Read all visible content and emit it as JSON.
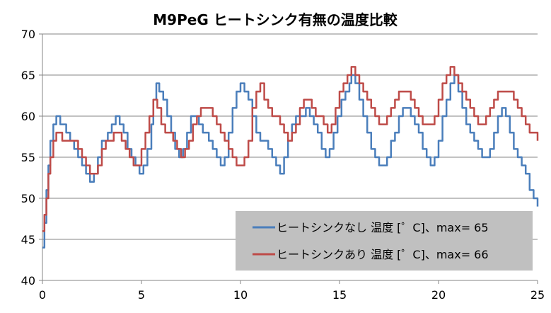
{
  "chart_data": {
    "type": "line",
    "title": "M9PeG ヒートシンク有無の温度比較",
    "xlabel": "",
    "ylabel": "",
    "xlim": [
      0,
      25
    ],
    "ylim": [
      40,
      70
    ],
    "x_ticks": [
      0,
      5,
      10,
      15,
      20,
      25
    ],
    "y_ticks": [
      40,
      45,
      50,
      55,
      60,
      65,
      70
    ],
    "grid": "horizontal",
    "legend_placement": "bottom-right (inside plot, grey box)",
    "legend_bg": "#c0c0c0",
    "series": [
      {
        "name": "ヒートシンクなし 温度 [゜C]、max= 65",
        "color": "#4a7ebb",
        "x": [
          0,
          0.1,
          0.2,
          0.3,
          0.4,
          0.55,
          0.7,
          0.9,
          1.2,
          1.4,
          1.6,
          1.8,
          2.0,
          2.2,
          2.4,
          2.6,
          2.8,
          3.0,
          3.3,
          3.5,
          3.7,
          3.9,
          4.1,
          4.3,
          4.5,
          4.7,
          4.9,
          5.1,
          5.3,
          5.5,
          5.6,
          5.75,
          5.9,
          6.1,
          6.3,
          6.5,
          6.7,
          6.9,
          7.1,
          7.3,
          7.5,
          7.7,
          7.9,
          8.1,
          8.4,
          8.6,
          8.8,
          9.0,
          9.2,
          9.4,
          9.6,
          9.8,
          10.0,
          10.2,
          10.4,
          10.6,
          10.8,
          11.0,
          11.2,
          11.4,
          11.6,
          11.8,
          12.0,
          12.2,
          12.4,
          12.6,
          12.8,
          13.1,
          13.3,
          13.5,
          13.7,
          13.9,
          14.1,
          14.3,
          14.5,
          14.7,
          14.9,
          15.1,
          15.3,
          15.5,
          15.6,
          15.8,
          16.0,
          16.2,
          16.4,
          16.6,
          16.8,
          17.0,
          17.2,
          17.4,
          17.6,
          17.8,
          18.0,
          18.2,
          18.4,
          18.6,
          18.8,
          19.0,
          19.2,
          19.4,
          19.6,
          19.8,
          20.0,
          20.2,
          20.4,
          20.6,
          20.8,
          21.0,
          21.2,
          21.4,
          21.6,
          21.8,
          22.0,
          22.2,
          22.4,
          22.6,
          22.8,
          23.0,
          23.2,
          23.4,
          23.6,
          23.8,
          24.0,
          24.2,
          24.4,
          24.6,
          24.8,
          25.0
        ],
        "values": [
          44,
          47,
          51,
          54,
          57,
          59,
          60,
          59,
          58,
          57,
          56,
          55,
          54,
          53,
          52,
          53,
          55,
          57,
          58,
          59,
          60,
          59,
          58,
          56,
          55,
          54,
          53,
          54,
          56,
          59,
          62,
          64,
          63,
          62,
          60,
          58,
          56,
          55,
          56,
          58,
          60,
          60,
          59,
          58,
          57,
          56,
          55,
          54,
          55,
          58,
          61,
          63,
          64,
          63,
          62,
          60,
          58,
          57,
          57,
          56,
          55,
          54,
          53,
          55,
          57,
          59,
          60,
          60,
          61,
          60,
          59,
          58,
          56,
          55,
          56,
          58,
          60,
          62,
          63,
          64,
          65,
          64,
          62,
          60,
          58,
          56,
          55,
          54,
          54,
          55,
          57,
          58,
          60,
          61,
          61,
          60,
          59,
          58,
          56,
          55,
          54,
          55,
          57,
          60,
          62,
          64,
          65,
          63,
          61,
          59,
          58,
          57,
          56,
          55,
          55,
          56,
          58,
          60,
          61,
          60,
          58,
          56,
          55,
          54,
          53,
          51,
          50,
          49
        ]
      },
      {
        "name": "ヒートシンクあり 温度 [゜C]、max= 66",
        "color": "#be4b48",
        "x": [
          0,
          0.1,
          0.2,
          0.3,
          0.4,
          0.55,
          0.7,
          1.0,
          1.3,
          1.6,
          1.8,
          2.0,
          2.2,
          2.4,
          2.6,
          2.8,
          3.0,
          3.2,
          3.4,
          3.6,
          3.8,
          4.0,
          4.2,
          4.4,
          4.6,
          4.8,
          5.0,
          5.2,
          5.4,
          5.6,
          5.8,
          6.0,
          6.2,
          6.4,
          6.6,
          6.8,
          7.0,
          7.2,
          7.4,
          7.6,
          7.8,
          8.0,
          8.2,
          8.4,
          8.6,
          8.8,
          9.0,
          9.2,
          9.4,
          9.6,
          9.8,
          10.0,
          10.2,
          10.4,
          10.6,
          10.8,
          11.0,
          11.2,
          11.4,
          11.6,
          11.8,
          12.0,
          12.2,
          12.4,
          12.6,
          12.8,
          13.0,
          13.2,
          13.4,
          13.6,
          13.8,
          14.0,
          14.2,
          14.4,
          14.6,
          14.8,
          15.0,
          15.2,
          15.4,
          15.6,
          15.8,
          16.0,
          16.2,
          16.4,
          16.6,
          16.8,
          17.0,
          17.2,
          17.4,
          17.6,
          17.8,
          18.0,
          18.2,
          18.4,
          18.6,
          18.8,
          19.0,
          19.2,
          19.4,
          19.6,
          19.8,
          20.0,
          20.2,
          20.4,
          20.6,
          20.8,
          21.0,
          21.2,
          21.4,
          21.6,
          21.8,
          22.0,
          22.2,
          22.4,
          22.6,
          22.8,
          23.0,
          23.2,
          23.4,
          23.6,
          23.8,
          24.0,
          24.2,
          24.4,
          24.6,
          24.8,
          25.0
        ],
        "values": [
          46,
          48,
          50,
          53,
          55,
          57,
          58,
          57,
          57,
          57,
          56,
          55,
          54,
          53,
          53,
          54,
          56,
          57,
          57,
          58,
          58,
          57,
          56,
          55,
          54,
          54,
          56,
          58,
          60,
          62,
          61,
          59,
          58,
          58,
          57,
          56,
          55,
          56,
          57,
          59,
          60,
          61,
          61,
          61,
          60,
          59,
          58,
          57,
          56,
          55,
          54,
          54,
          55,
          57,
          61,
          63,
          64,
          62,
          61,
          60,
          60,
          59,
          58,
          57,
          58,
          59,
          61,
          62,
          62,
          61,
          60,
          60,
          59,
          58,
          59,
          61,
          63,
          64,
          65,
          66,
          65,
          64,
          63,
          62,
          61,
          60,
          59,
          59,
          60,
          61,
          62,
          63,
          63,
          63,
          62,
          61,
          60,
          59,
          59,
          59,
          60,
          62,
          64,
          65,
          66,
          65,
          64,
          63,
          62,
          61,
          60,
          59,
          59,
          60,
          61,
          62,
          63,
          63,
          63,
          63,
          62,
          61,
          60,
          59,
          58,
          58,
          57
        ]
      }
    ]
  }
}
